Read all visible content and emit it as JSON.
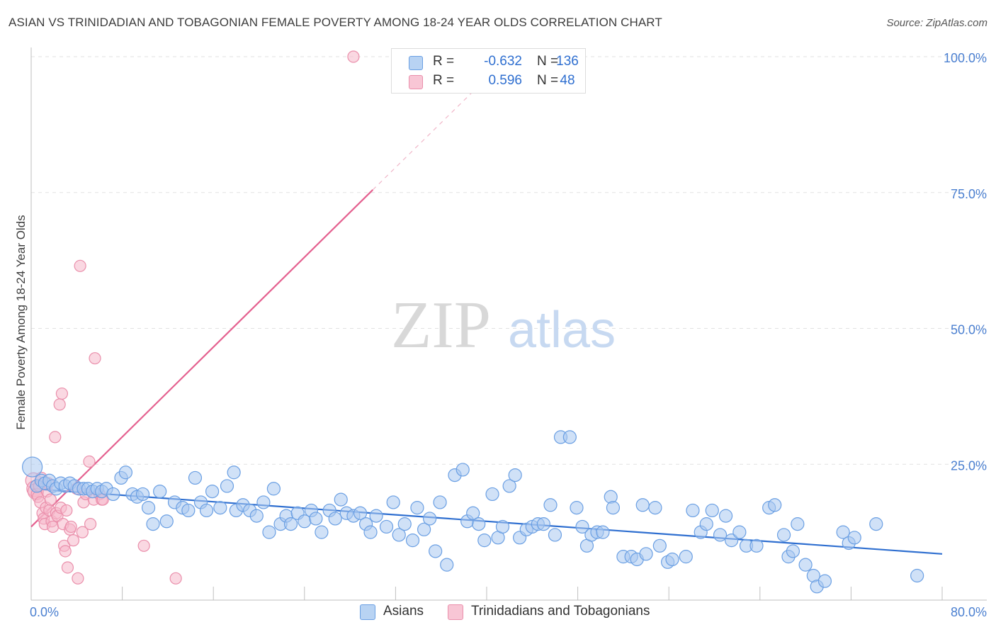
{
  "title": "ASIAN VS TRINIDADIAN AND TOBAGONIAN FEMALE POVERTY AMONG 18-24 YEAR OLDS CORRELATION CHART",
  "source": "Source: ZipAtlas.com",
  "watermark": {
    "zip": "ZIP",
    "atlas": "atlas"
  },
  "legend": {
    "r_label": "R =",
    "n_label": "N =",
    "rows": [
      {
        "series": "Asians",
        "r": "-0.632",
        "n": "136"
      },
      {
        "series": "Trinidadians and Tobagonians",
        "r": "0.596",
        "n": "48"
      }
    ]
  },
  "colors": {
    "blue_fill": "#a9c8f0",
    "blue_stroke": "#6a9fe3",
    "blue_line": "#2f6fd0",
    "pink_fill": "#f6b8cb",
    "pink_stroke": "#ea8fab",
    "pink_line": "#e4608f",
    "tick_label": "#4a7fd0"
  },
  "chart_data": {
    "type": "scatter",
    "title": "ASIAN VS TRINIDADIAN AND TOBAGONIAN FEMALE POVERTY AMONG 18-24 YEAR OLDS CORRELATION CHART",
    "xlabel": "",
    "ylabel": "Female Poverty Among 18-24 Year Olds",
    "xlim": [
      0,
      80
    ],
    "ylim": [
      0,
      105
    ],
    "x_tick_labels": [
      "0.0%",
      "80.0%"
    ],
    "y_ticks": [
      25,
      50,
      75,
      100
    ],
    "y_tick_labels": [
      "25.0%",
      "50.0%",
      "75.0%",
      "100.0%"
    ],
    "grid": true,
    "series": [
      {
        "name": "Asians",
        "trend": {
          "x0": 0,
          "y0": 20.5,
          "x1": 80,
          "y1": 8.5
        },
        "points": [
          [
            0.1,
            24.5
          ],
          [
            0.5,
            21
          ],
          [
            0.9,
            22
          ],
          [
            1.2,
            21.5
          ],
          [
            1.6,
            22
          ],
          [
            1.9,
            21
          ],
          [
            2.2,
            20.5
          ],
          [
            2.6,
            21.5
          ],
          [
            3,
            21
          ],
          [
            3.4,
            21.5
          ],
          [
            3.8,
            21
          ],
          [
            4.2,
            20.5
          ],
          [
            4.6,
            20.5
          ],
          [
            5,
            20.5
          ],
          [
            5.4,
            20
          ],
          [
            5.8,
            20.5
          ],
          [
            6.2,
            20
          ],
          [
            6.6,
            20.5
          ],
          [
            7.2,
            19.5
          ],
          [
            7.9,
            22.5
          ],
          [
            8.3,
            23.5
          ],
          [
            8.9,
            19.5
          ],
          [
            9.3,
            19
          ],
          [
            9.8,
            19.5
          ],
          [
            10.3,
            17
          ],
          [
            10.7,
            14
          ],
          [
            11.3,
            20
          ],
          [
            11.9,
            14.5
          ],
          [
            12.6,
            18
          ],
          [
            13.3,
            17
          ],
          [
            13.8,
            16.5
          ],
          [
            14.4,
            22.5
          ],
          [
            14.9,
            18
          ],
          [
            15.4,
            16.5
          ],
          [
            15.9,
            20
          ],
          [
            16.6,
            17
          ],
          [
            17.2,
            21
          ],
          [
            17.8,
            23.5
          ],
          [
            18,
            16.5
          ],
          [
            18.6,
            17.5
          ],
          [
            19.2,
            16.5
          ],
          [
            19.8,
            15.5
          ],
          [
            20.4,
            18
          ],
          [
            20.9,
            12.5
          ],
          [
            21.3,
            20.5
          ],
          [
            21.9,
            14
          ],
          [
            22.4,
            15.5
          ],
          [
            22.8,
            14
          ],
          [
            23.4,
            16
          ],
          [
            24,
            14.5
          ],
          [
            24.6,
            16.5
          ],
          [
            25,
            15
          ],
          [
            25.5,
            12.5
          ],
          [
            26.2,
            16.5
          ],
          [
            26.7,
            15
          ],
          [
            27.2,
            18.5
          ],
          [
            27.7,
            16
          ],
          [
            28.3,
            15.5
          ],
          [
            28.9,
            16
          ],
          [
            29.4,
            14
          ],
          [
            29.8,
            12.5
          ],
          [
            30.3,
            15.5
          ],
          [
            31.2,
            13.5
          ],
          [
            31.8,
            18
          ],
          [
            32.3,
            12
          ],
          [
            32.8,
            14
          ],
          [
            33.5,
            11
          ],
          [
            33.9,
            17
          ],
          [
            34.5,
            13
          ],
          [
            35,
            15
          ],
          [
            35.5,
            9
          ],
          [
            35.9,
            18
          ],
          [
            36.5,
            6.5
          ],
          [
            37.2,
            23
          ],
          [
            37.9,
            24
          ],
          [
            38.3,
            14.5
          ],
          [
            38.8,
            16
          ],
          [
            39.3,
            14
          ],
          [
            39.8,
            11
          ],
          [
            40.5,
            19.5
          ],
          [
            41,
            11.5
          ],
          [
            41.4,
            13.5
          ],
          [
            42,
            21
          ],
          [
            42.5,
            23
          ],
          [
            42.9,
            11.5
          ],
          [
            43.5,
            13
          ],
          [
            44,
            13.5
          ],
          [
            44.5,
            14
          ],
          [
            45,
            14
          ],
          [
            45.6,
            17.5
          ],
          [
            46,
            12
          ],
          [
            46.5,
            30
          ],
          [
            47.3,
            30
          ],
          [
            47.9,
            17
          ],
          [
            48.4,
            13.5
          ],
          [
            48.8,
            10
          ],
          [
            49.2,
            12
          ],
          [
            49.7,
            12.5
          ],
          [
            50.2,
            12.5
          ],
          [
            50.9,
            19
          ],
          [
            51.1,
            17
          ],
          [
            52,
            8
          ],
          [
            52.7,
            8
          ],
          [
            53.2,
            7.5
          ],
          [
            53.7,
            17.5
          ],
          [
            54,
            8.5
          ],
          [
            54.8,
            17
          ],
          [
            55.2,
            10
          ],
          [
            55.9,
            7
          ],
          [
            56.3,
            7.5
          ],
          [
            57.5,
            8
          ],
          [
            58.1,
            16.5
          ],
          [
            58.8,
            12.5
          ],
          [
            59.3,
            14
          ],
          [
            59.8,
            16.5
          ],
          [
            60.5,
            12
          ],
          [
            61,
            15.5
          ],
          [
            61.5,
            11
          ],
          [
            62.2,
            12.5
          ],
          [
            62.8,
            10
          ],
          [
            63.7,
            10
          ],
          [
            64.8,
            17
          ],
          [
            65.3,
            17.5
          ],
          [
            66.1,
            12
          ],
          [
            66.5,
            8
          ],
          [
            66.9,
            9
          ],
          [
            67.3,
            14
          ],
          [
            68,
            6.5
          ],
          [
            68.7,
            4.5
          ],
          [
            69,
            2.5
          ],
          [
            69.7,
            3.5
          ],
          [
            71.3,
            12.5
          ],
          [
            71.8,
            10.5
          ],
          [
            72.3,
            11.5
          ],
          [
            74.2,
            14
          ],
          [
            77.8,
            4.5
          ]
        ],
        "sizes": {
          "0.1": 14
        }
      },
      {
        "name": "Trinidadians and Tobagonians",
        "trend": {
          "x0": 0,
          "y0": 13.5,
          "x1": 30,
          "y1": 75.5
        },
        "trend_dashed_to": {
          "x": 39,
          "y": 94
        },
        "points": [
          [
            0.2,
            22
          ],
          [
            0.3,
            20.5
          ],
          [
            0.4,
            20
          ],
          [
            0.5,
            19.5
          ],
          [
            0.6,
            19
          ],
          [
            0.7,
            21
          ],
          [
            0.8,
            18
          ],
          [
            0.9,
            22.5
          ],
          [
            1,
            16
          ],
          [
            1.1,
            15
          ],
          [
            1.2,
            14
          ],
          [
            1.3,
            17
          ],
          [
            1.4,
            20
          ],
          [
            1.5,
            21.5
          ],
          [
            1.6,
            16.5
          ],
          [
            1.7,
            18.5
          ],
          [
            1.8,
            14.5
          ],
          [
            1.9,
            13.5
          ],
          [
            2.1,
            30
          ],
          [
            2.2,
            16
          ],
          [
            2.3,
            15.5
          ],
          [
            2.5,
            36
          ],
          [
            2.6,
            17
          ],
          [
            2.7,
            38
          ],
          [
            2.8,
            14
          ],
          [
            2.9,
            10
          ],
          [
            3,
            9
          ],
          [
            3.1,
            16.5
          ],
          [
            3.2,
            6
          ],
          [
            3.4,
            13
          ],
          [
            3.5,
            13.5
          ],
          [
            3.7,
            11
          ],
          [
            4,
            20.5
          ],
          [
            4.1,
            4
          ],
          [
            4.5,
            12.5
          ],
          [
            4.3,
            61.5
          ],
          [
            4.6,
            18
          ],
          [
            4.8,
            19.5
          ],
          [
            5.1,
            25.5
          ],
          [
            5.2,
            14
          ],
          [
            5.5,
            18.5
          ],
          [
            5.6,
            44.5
          ],
          [
            6,
            19.5
          ],
          [
            6.2,
            18.5
          ],
          [
            6.3,
            18.5
          ],
          [
            9.9,
            10
          ],
          [
            12.7,
            4
          ],
          [
            28.3,
            100
          ]
        ]
      }
    ]
  }
}
